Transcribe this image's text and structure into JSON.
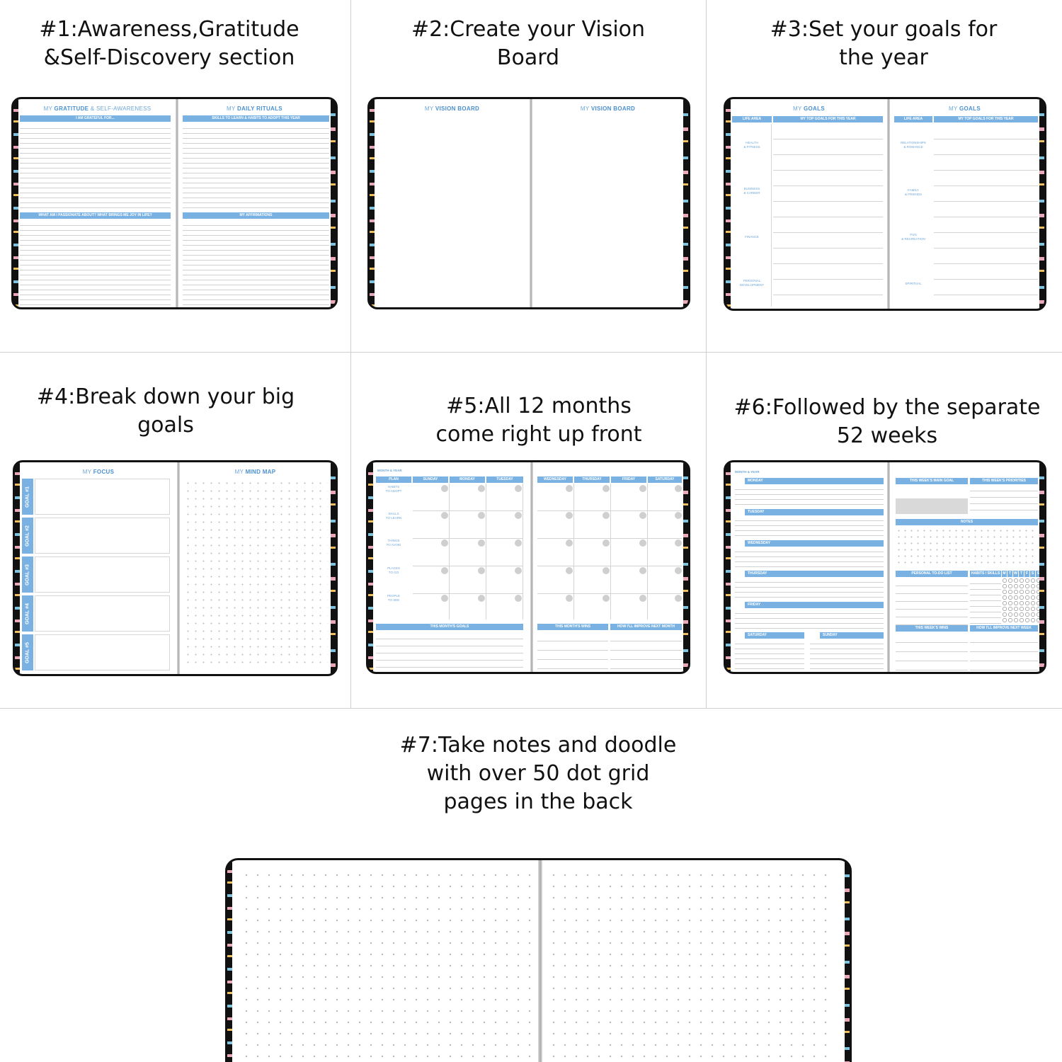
{
  "captions": {
    "c1": "#1:Awareness,Gratitude\n&Self-Discovery section",
    "c2": "#2:Create your Vision\nBoard",
    "c3": "#3:Set your goals for\nthe year",
    "c4": "#4:Break down your big\ngoals",
    "c5": "#5:All 12 months\ncome right up front",
    "c6": "#6:Followed by the separate\n52 weeks",
    "c7": "#7:Take notes and doodle\nwith over 50 dot grid\npages in the back"
  },
  "spread1": {
    "left_title_light": "MY ",
    "left_title_bold": "GRATITUDE",
    "left_title_rest": " & SELF-AWARENESS",
    "left_bar1": "I AM GRATEFUL FOR...",
    "left_bar2": "WHAT AM I PASSIONATE ABOUT? WHAT BRINGS ME JOY IN LIFE?",
    "right_title_light": "MY ",
    "right_title_bold": "DAILY RITUALS",
    "right_bar1": "SKILLS TO LEARN & HABITS TO ADOPT THIS YEAR",
    "right_bar2": "MY AFFIRMATIONS"
  },
  "spread2": {
    "left_title_light": "MY ",
    "left_title_bold": "VISION BOARD",
    "right_title_light": "MY ",
    "right_title_bold": "VISION BOARD"
  },
  "spread3": {
    "title_light": "MY ",
    "title_bold": "GOALS",
    "col1": "LIFE AREA",
    "col2": "MY TOP GOALS FOR THIS YEAR",
    "left_areas": [
      "HEALTH\n& FITNESS",
      "BUSINESS\n& CAREER",
      "FINANCE",
      "PERSONAL\nDEVELOPMENT"
    ],
    "right_areas": [
      "RELATIONSHIPS\n& ROMANCE",
      "FAMILY\n& FRIENDS",
      "FUN\n& RECREATION",
      "SPIRITUAL"
    ]
  },
  "spread4": {
    "left_title_light": "MY ",
    "left_title_bold": "FOCUS",
    "right_title_light": "MY ",
    "right_title_bold": "MIND MAP",
    "goals": [
      "GOAL #1",
      "GOAL #2",
      "GOAL #3",
      "GOAL #4",
      "GOAL #5"
    ]
  },
  "spread5": {
    "month_label": "MONTH & YEAR",
    "plan": "PLAN",
    "left_days": [
      "SUNDAY",
      "MONDAY",
      "TUESDAY"
    ],
    "right_days": [
      "WEDNESDAY",
      "THURSDAY",
      "FRIDAY",
      "SATURDAY"
    ],
    "plan_rows": [
      "HABITS\nTO ADOPT",
      "SKILLS\nTO LEARN",
      "THINGS\nTO AVOID",
      "PLACES\nTO GO",
      "PEOPLE\nTO SEE"
    ],
    "goals_bar": "THIS MONTH'S GOALS",
    "wins_bar": "THIS MONTH'S WINS",
    "improve_bar": "HOW I'LL IMPROVE NEXT MONTH"
  },
  "spread6": {
    "month_label": "MONTH & YEAR",
    "days": [
      "MONDAY",
      "TUESDAY",
      "WEDNESDAY",
      "THURSDAY",
      "FRIDAY"
    ],
    "saturday": "SATURDAY",
    "sunday": "SUNDAY",
    "main_goal": "THIS WEEK'S MAIN GOAL",
    "priorities": "THIS WEEK'S PRIORITIES",
    "notes": "NOTES",
    "todo": "PERSONAL TO-DO LIST",
    "habits": "HABITS / SKILLS",
    "habit_days": [
      "M",
      "T",
      "W",
      "T",
      "F",
      "S",
      "S"
    ],
    "wins": "THIS WEEK'S WINS",
    "improve": "HOW I'LL IMPROVE NEXT WEEK"
  },
  "colors": {
    "accent": "#79b2e2",
    "title": "#4a90d0",
    "cover": "#111111"
  }
}
